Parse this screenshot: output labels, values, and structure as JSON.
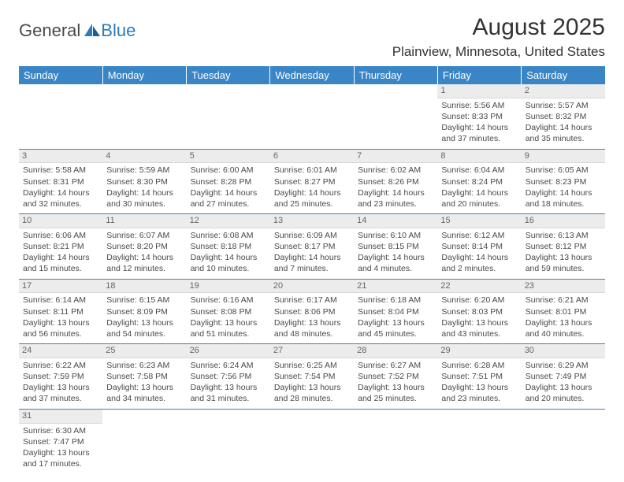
{
  "brand": {
    "part1": "General",
    "part2": "Blue"
  },
  "title": "August 2025",
  "location": "Plainview, Minnesota, United States",
  "header_color": "#3a85c6",
  "day_bg": "#ececec",
  "rule_color": "#4a7fb0",
  "day_headers": [
    "Sunday",
    "Monday",
    "Tuesday",
    "Wednesday",
    "Thursday",
    "Friday",
    "Saturday"
  ],
  "weeks": [
    [
      null,
      null,
      null,
      null,
      null,
      {
        "d": "1",
        "r": "5:56 AM",
        "s": "8:33 PM",
        "dl": "14 hours and 37 minutes."
      },
      {
        "d": "2",
        "r": "5:57 AM",
        "s": "8:32 PM",
        "dl": "14 hours and 35 minutes."
      }
    ],
    [
      {
        "d": "3",
        "r": "5:58 AM",
        "s": "8:31 PM",
        "dl": "14 hours and 32 minutes."
      },
      {
        "d": "4",
        "r": "5:59 AM",
        "s": "8:30 PM",
        "dl": "14 hours and 30 minutes."
      },
      {
        "d": "5",
        "r": "6:00 AM",
        "s": "8:28 PM",
        "dl": "14 hours and 27 minutes."
      },
      {
        "d": "6",
        "r": "6:01 AM",
        "s": "8:27 PM",
        "dl": "14 hours and 25 minutes."
      },
      {
        "d": "7",
        "r": "6:02 AM",
        "s": "8:26 PM",
        "dl": "14 hours and 23 minutes."
      },
      {
        "d": "8",
        "r": "6:04 AM",
        "s": "8:24 PM",
        "dl": "14 hours and 20 minutes."
      },
      {
        "d": "9",
        "r": "6:05 AM",
        "s": "8:23 PM",
        "dl": "14 hours and 18 minutes."
      }
    ],
    [
      {
        "d": "10",
        "r": "6:06 AM",
        "s": "8:21 PM",
        "dl": "14 hours and 15 minutes."
      },
      {
        "d": "11",
        "r": "6:07 AM",
        "s": "8:20 PM",
        "dl": "14 hours and 12 minutes."
      },
      {
        "d": "12",
        "r": "6:08 AM",
        "s": "8:18 PM",
        "dl": "14 hours and 10 minutes."
      },
      {
        "d": "13",
        "r": "6:09 AM",
        "s": "8:17 PM",
        "dl": "14 hours and 7 minutes."
      },
      {
        "d": "14",
        "r": "6:10 AM",
        "s": "8:15 PM",
        "dl": "14 hours and 4 minutes."
      },
      {
        "d": "15",
        "r": "6:12 AM",
        "s": "8:14 PM",
        "dl": "14 hours and 2 minutes."
      },
      {
        "d": "16",
        "r": "6:13 AM",
        "s": "8:12 PM",
        "dl": "13 hours and 59 minutes."
      }
    ],
    [
      {
        "d": "17",
        "r": "6:14 AM",
        "s": "8:11 PM",
        "dl": "13 hours and 56 minutes."
      },
      {
        "d": "18",
        "r": "6:15 AM",
        "s": "8:09 PM",
        "dl": "13 hours and 54 minutes."
      },
      {
        "d": "19",
        "r": "6:16 AM",
        "s": "8:08 PM",
        "dl": "13 hours and 51 minutes."
      },
      {
        "d": "20",
        "r": "6:17 AM",
        "s": "8:06 PM",
        "dl": "13 hours and 48 minutes."
      },
      {
        "d": "21",
        "r": "6:18 AM",
        "s": "8:04 PM",
        "dl": "13 hours and 45 minutes."
      },
      {
        "d": "22",
        "r": "6:20 AM",
        "s": "8:03 PM",
        "dl": "13 hours and 43 minutes."
      },
      {
        "d": "23",
        "r": "6:21 AM",
        "s": "8:01 PM",
        "dl": "13 hours and 40 minutes."
      }
    ],
    [
      {
        "d": "24",
        "r": "6:22 AM",
        "s": "7:59 PM",
        "dl": "13 hours and 37 minutes."
      },
      {
        "d": "25",
        "r": "6:23 AM",
        "s": "7:58 PM",
        "dl": "13 hours and 34 minutes."
      },
      {
        "d": "26",
        "r": "6:24 AM",
        "s": "7:56 PM",
        "dl": "13 hours and 31 minutes."
      },
      {
        "d": "27",
        "r": "6:25 AM",
        "s": "7:54 PM",
        "dl": "13 hours and 28 minutes."
      },
      {
        "d": "28",
        "r": "6:27 AM",
        "s": "7:52 PM",
        "dl": "13 hours and 25 minutes."
      },
      {
        "d": "29",
        "r": "6:28 AM",
        "s": "7:51 PM",
        "dl": "13 hours and 23 minutes."
      },
      {
        "d": "30",
        "r": "6:29 AM",
        "s": "7:49 PM",
        "dl": "13 hours and 20 minutes."
      }
    ],
    [
      {
        "d": "31",
        "r": "6:30 AM",
        "s": "7:47 PM",
        "dl": "13 hours and 17 minutes."
      },
      null,
      null,
      null,
      null,
      null,
      null
    ]
  ],
  "labels": {
    "sunrise": "Sunrise: ",
    "sunset": "Sunset: ",
    "daylight": "Daylight: "
  }
}
